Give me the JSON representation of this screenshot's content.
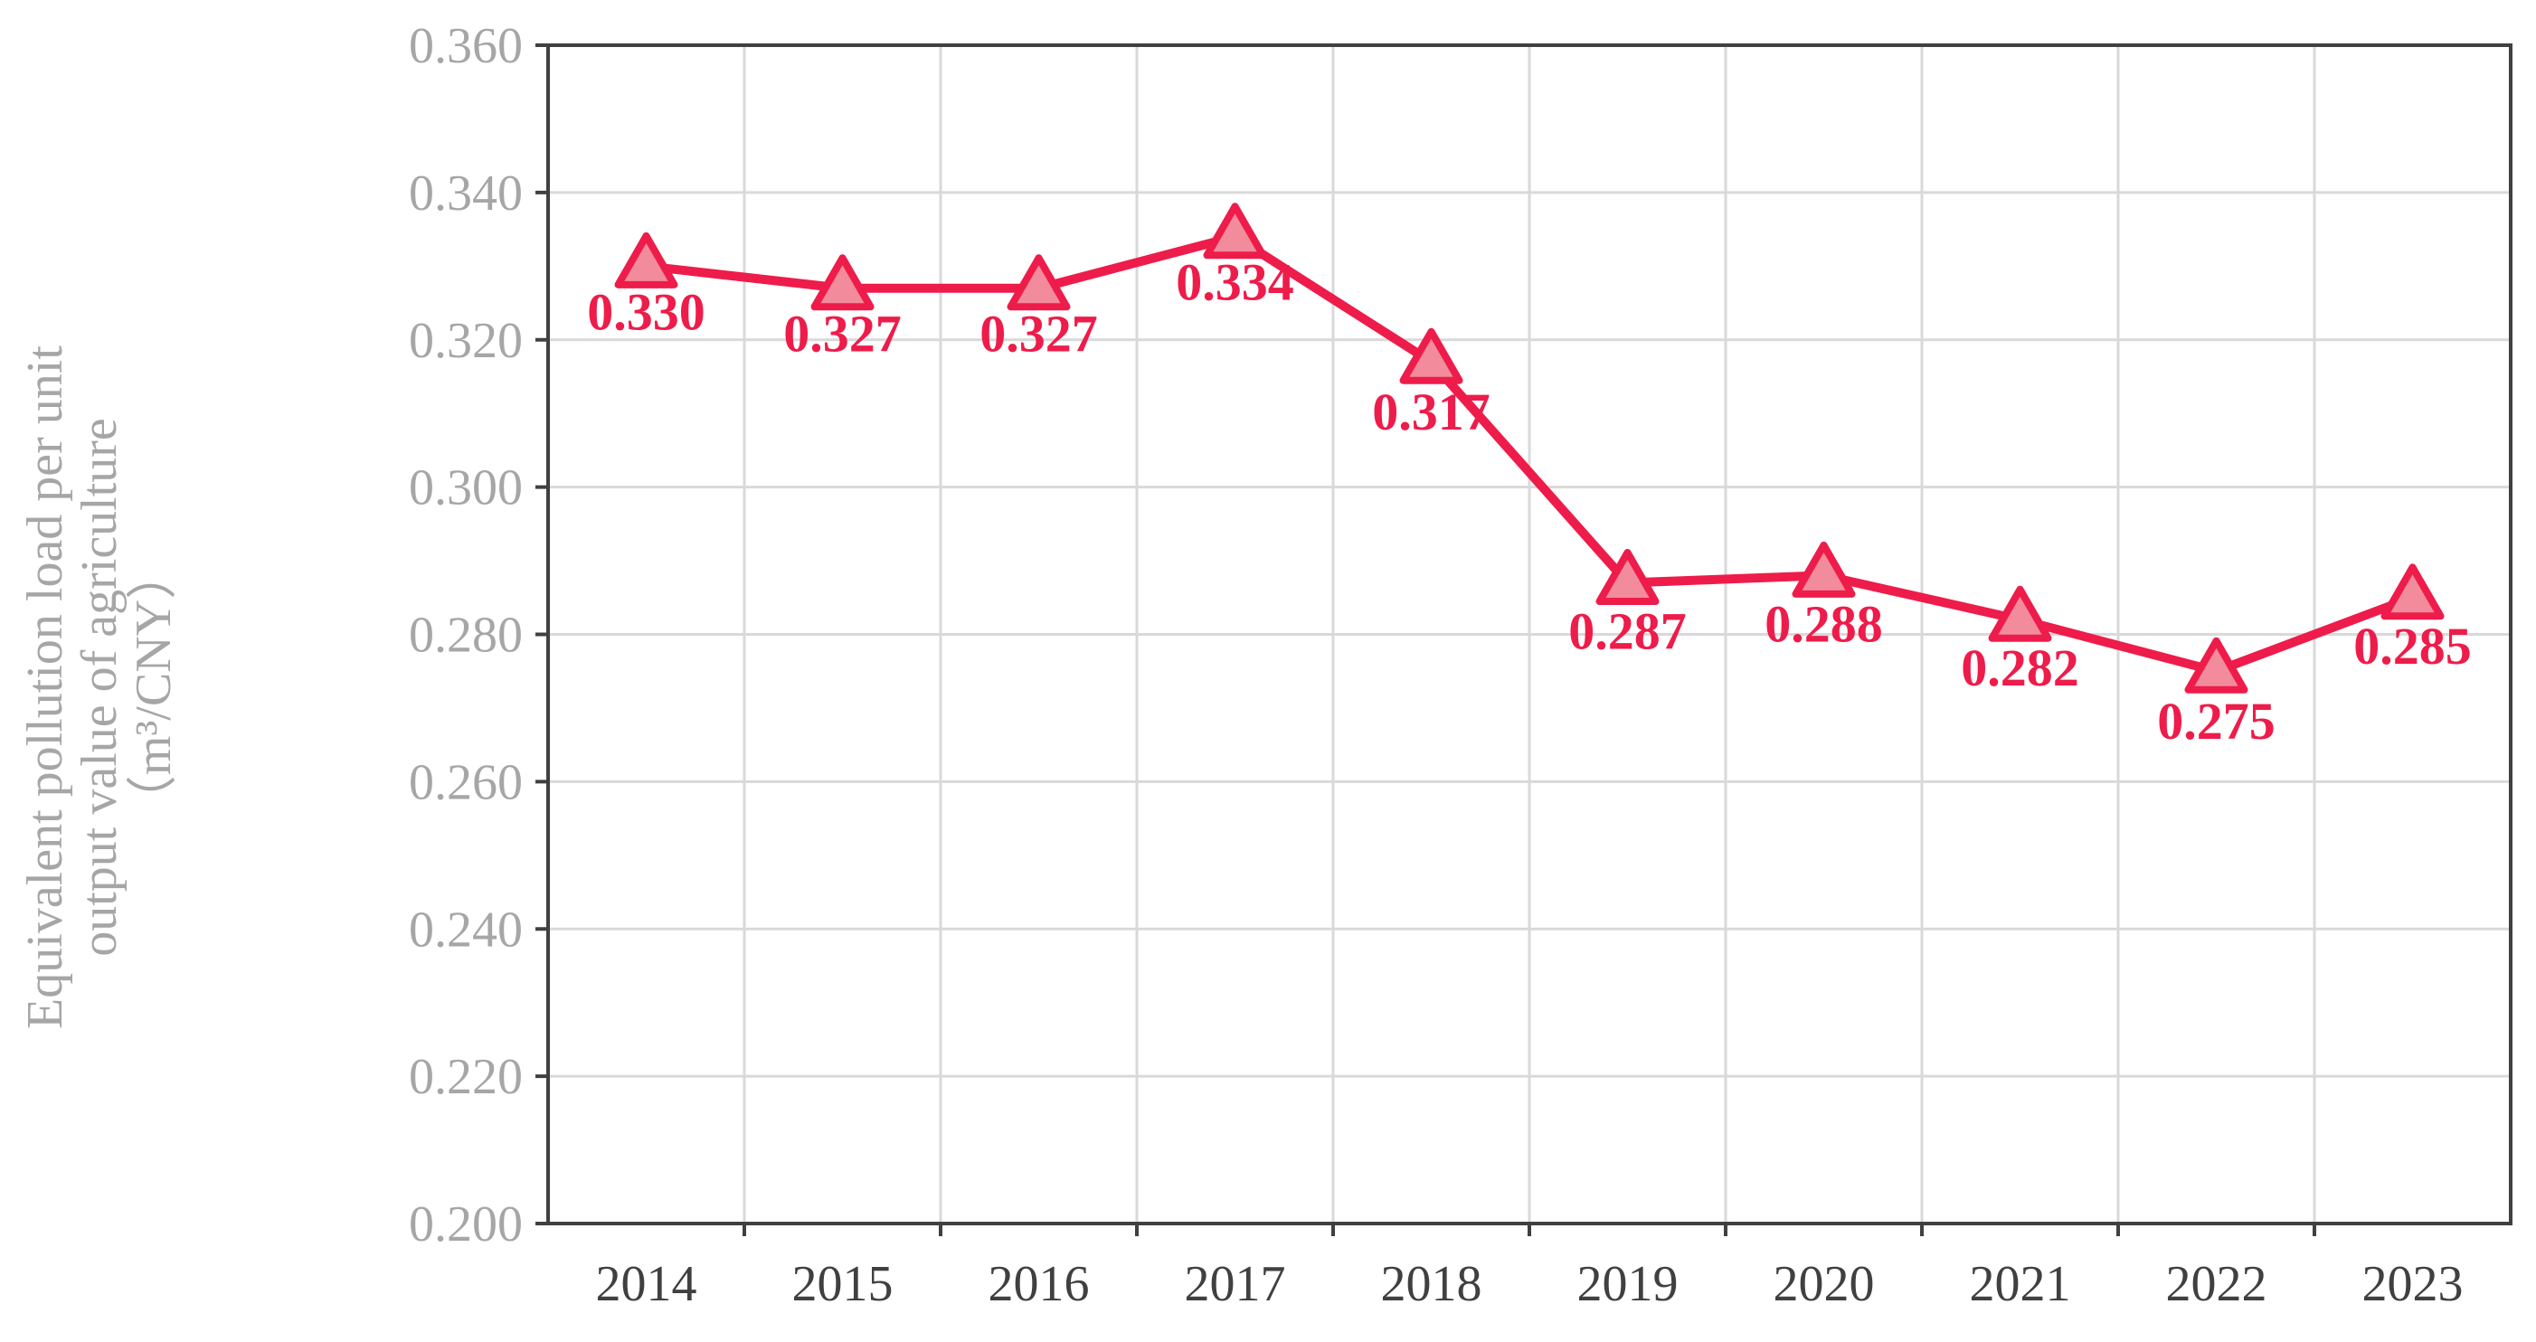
{
  "chart_data": {
    "type": "line",
    "title": "",
    "xlabel": "",
    "ylabel_lines": [
      "Equivalent pollution load per unit",
      "output value of agriculture",
      "（m³/CNY）"
    ],
    "categories": [
      "2014",
      "2015",
      "2016",
      "2017",
      "2018",
      "2019",
      "2020",
      "2021",
      "2022",
      "2023"
    ],
    "series": [
      {
        "values": [
          0.33,
          0.327,
          0.327,
          0.334,
          0.317,
          0.287,
          0.288,
          0.282,
          0.275,
          0.285
        ],
        "value_labels": [
          "0.330",
          "0.327",
          "0.327",
          "0.334",
          "0.317",
          "0.287",
          "0.288",
          "0.282",
          "0.275",
          "0.285"
        ],
        "color": "#ee1c4a",
        "marker": "triangle",
        "marker_fill": "#f28b9b"
      }
    ],
    "ylim": [
      0.2,
      0.36
    ],
    "yticks": [
      "0.200",
      "0.220",
      "0.240",
      "0.260",
      "0.280",
      "0.300",
      "0.320",
      "0.340",
      "0.360"
    ],
    "grid": true,
    "legend": "none"
  }
}
